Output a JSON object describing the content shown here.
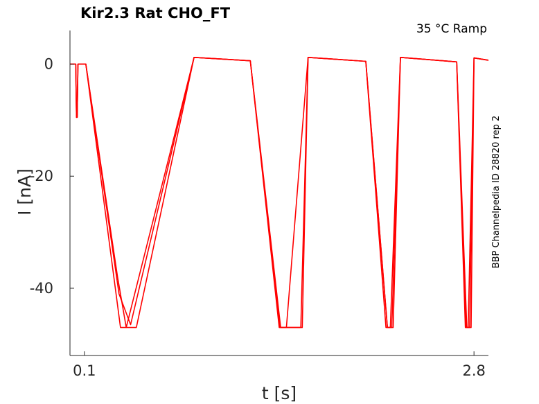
{
  "chart_data": {
    "type": "line",
    "title": "Kir2.3  Rat  CHO_FT",
    "condition": "35 °C  Ramp",
    "side_label": "BBP Channelpedia ID 28820 rep 2",
    "xlabel": "t [s]",
    "ylabel": "I [nA]",
    "xlim": [
      0.0,
      2.9
    ],
    "ylim": [
      -52,
      6
    ],
    "xticks": [
      0.1,
      2.8
    ],
    "xtick_labels": [
      "0.1",
      "2.8"
    ],
    "yticks": [
      0,
      -20,
      -40
    ],
    "ytick_labels": [
      "0",
      "-20",
      "-40"
    ],
    "grid": false,
    "color": "#ff0000",
    "series": [
      {
        "x": [
          0.0,
          0.04,
          0.045,
          0.05,
          0.055,
          0.06,
          0.1,
          0.11,
          0.35,
          0.46,
          0.86,
          1.25,
          1.46,
          1.61,
          1.65,
          2.05,
          2.2,
          2.24,
          2.29,
          2.68,
          2.75,
          2.78,
          2.8,
          2.9
        ],
        "y": [
          0,
          0,
          -9.5,
          -9.5,
          0,
          0,
          0,
          0,
          -47,
          -47,
          1.2,
          0.6,
          -47,
          -47,
          1.2,
          0.5,
          -47,
          -47,
          1.2,
          0.4,
          -47,
          -47,
          1.1,
          0.7
        ]
      },
      {
        "x": [
          0.0,
          0.04,
          0.045,
          0.05,
          0.055,
          0.06,
          0.1,
          0.11,
          0.33,
          0.39,
          0.86,
          1.25,
          1.45,
          1.5,
          1.65,
          2.05,
          2.19,
          2.22,
          2.29,
          2.68,
          2.74,
          2.76,
          2.8,
          2.9
        ],
        "y": [
          0,
          0,
          -9.5,
          -9.5,
          0,
          0,
          0,
          0,
          -38,
          -47,
          1.2,
          0.6,
          -47,
          -47,
          1.2,
          0.5,
          -47,
          -47,
          1.2,
          0.4,
          -47,
          -47,
          1.1,
          0.7
        ]
      },
      {
        "x": [
          0.0,
          0.04,
          0.045,
          0.05,
          0.055,
          0.06,
          0.1,
          0.11,
          0.34,
          0.42,
          0.86,
          1.25,
          1.455,
          1.6,
          1.65,
          2.05,
          2.2,
          2.23,
          2.29,
          2.68,
          2.745,
          2.77,
          2.8,
          2.9
        ],
        "y": [
          0,
          0,
          -9.5,
          -9.5,
          0,
          0,
          0,
          0,
          -41,
          -46.5,
          1.2,
          0.6,
          -47,
          -47,
          1.2,
          0.5,
          -47,
          -47,
          1.2,
          0.4,
          -47,
          -47,
          1.1,
          0.7
        ]
      }
    ]
  }
}
